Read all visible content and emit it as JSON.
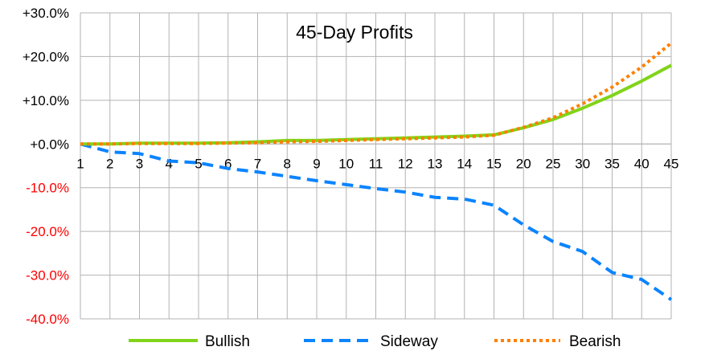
{
  "chart_data": {
    "type": "line",
    "title": "45-Day Profits",
    "xlabel": "",
    "ylabel": "",
    "categories": [
      "1",
      "2",
      "3",
      "4",
      "5",
      "6",
      "7",
      "8",
      "9",
      "10",
      "11",
      "12",
      "13",
      "14",
      "15",
      "20",
      "25",
      "30",
      "35",
      "40",
      "45"
    ],
    "y_ticks": [
      "+30.0%",
      "+20.0%",
      "+10.0%",
      "+0.0%",
      "-10.0%",
      "-20.0%",
      "-30.0%",
      "-40.0%"
    ],
    "ylim": [
      -40,
      30
    ],
    "grid": true,
    "legend_position": "bottom",
    "negative_tick_color": "#ff0000",
    "positive_tick_color": "#000000",
    "series": [
      {
        "name": "Bullish",
        "color": "#81d41a",
        "dash": "solid",
        "values": [
          0.0,
          0.0,
          0.2,
          0.2,
          0.2,
          0.3,
          0.5,
          0.8,
          0.8,
          1.0,
          1.2,
          1.4,
          1.6,
          1.8,
          2.1,
          3.7,
          5.6,
          8.2,
          11.1,
          14.4,
          18.0
        ]
      },
      {
        "name": "Sideway",
        "color": "#0b84ff",
        "dash": "dashed",
        "values": [
          0.0,
          -1.8,
          -2.2,
          -3.9,
          -4.3,
          -5.6,
          -6.4,
          -7.4,
          -8.4,
          -9.3,
          -10.2,
          -11.0,
          -12.2,
          -12.6,
          -14.0,
          -18.5,
          -22.3,
          -24.6,
          -29.4,
          -31.0,
          -35.6
        ]
      },
      {
        "name": "Bearish",
        "color": "#ff8000",
        "dash": "dotted",
        "values": [
          0.0,
          0.0,
          0.1,
          0.1,
          0.1,
          0.2,
          0.3,
          0.5,
          0.6,
          0.8,
          1.0,
          1.2,
          1.4,
          1.6,
          2.0,
          3.8,
          6.0,
          9.2,
          13.0,
          17.6,
          23.1
        ]
      }
    ]
  }
}
